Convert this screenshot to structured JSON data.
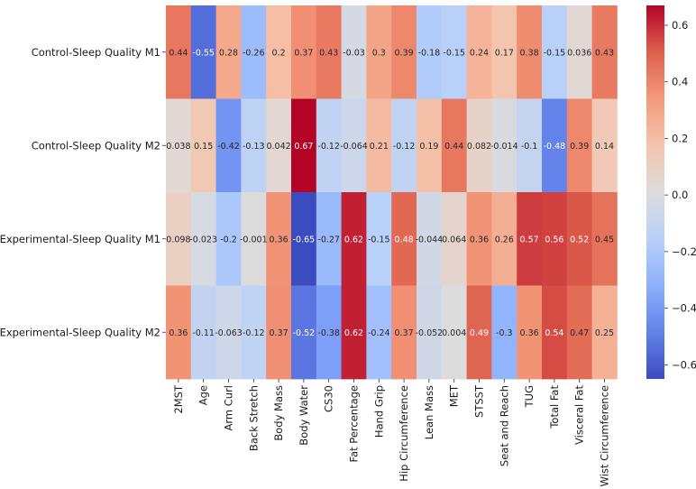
{
  "chart_data": {
    "type": "heatmap",
    "title": "",
    "xlabel": "",
    "ylabel": "",
    "rows": [
      "Control-Sleep Quality M1",
      "Control-Sleep Quality M2",
      "Experimental-Sleep Quality M1",
      "Experimental-Sleep Quality M2"
    ],
    "columns": [
      "2MST",
      "Age",
      "Arm Curl",
      "Back Stretch",
      "Body Mass",
      "Body Water",
      "CS30",
      "Fat Percentage",
      "Hand Grip",
      "Hip Circumference",
      "Lean Mass",
      "MET",
      "STSST",
      "Seat and Reach",
      "TUG",
      "Total Fat",
      "Visceral Fat",
      "Wist Circumference"
    ],
    "values": [
      [
        0.44,
        -0.55,
        0.28,
        -0.26,
        0.2,
        0.37,
        0.43,
        -0.03,
        0.3,
        0.39,
        -0.18,
        -0.15,
        0.24,
        0.17,
        0.38,
        -0.15,
        0.036,
        0.43
      ],
      [
        0.038,
        0.15,
        -0.42,
        -0.13,
        0.042,
        0.67,
        -0.12,
        -0.064,
        0.21,
        -0.12,
        0.19,
        0.44,
        0.082,
        -0.014,
        -0.1,
        -0.48,
        0.39,
        0.14
      ],
      [
        0.098,
        -0.023,
        -0.2,
        -0.001,
        0.36,
        -0.65,
        -0.27,
        0.62,
        -0.15,
        0.48,
        -0.044,
        0.064,
        0.36,
        0.26,
        0.57,
        0.56,
        0.52,
        0.45
      ],
      [
        0.36,
        -0.11,
        -0.063,
        -0.12,
        0.37,
        -0.52,
        -0.38,
        0.62,
        -0.24,
        0.37,
        -0.052,
        0.004,
        0.49,
        -0.3,
        0.36,
        0.54,
        0.47,
        0.25
      ]
    ],
    "labels": [
      [
        "0.44",
        "-0.55",
        "0.28",
        "-0.26",
        "0.2",
        "0.37",
        "0.43",
        "-0.03",
        "0.3",
        "0.39",
        "-0.18",
        "-0.15",
        "0.24",
        "0.17",
        "0.38",
        "-0.15",
        "0.036",
        "0.43"
      ],
      [
        "0.038",
        "0.15",
        "-0.42",
        "-0.13",
        "0.042",
        "0.67",
        "-0.12",
        "-0.064",
        "0.21",
        "-0.12",
        "0.19",
        "0.44",
        "0.082",
        "-0.014",
        "-0.1",
        "-0.48",
        "0.39",
        "0.14"
      ],
      [
        "0.098",
        "-0.023",
        "-0.2",
        "-0.001",
        "0.36",
        "-0.65",
        "-0.27",
        "0.62",
        "-0.15",
        "0.48",
        "-0.044",
        "0.064",
        "0.36",
        "0.26",
        "0.57",
        "0.56",
        "0.52",
        "0.45"
      ],
      [
        "0.36",
        "-0.11",
        "-0.063",
        "-0.12",
        "0.37",
        "-0.52",
        "-0.38",
        "0.62",
        "-0.24",
        "0.37",
        "-0.052",
        "0.004",
        "0.49",
        "-0.3",
        "0.36",
        "0.54",
        "0.47",
        "0.25"
      ]
    ],
    "colormap": "coolwarm",
    "vmin": -0.65,
    "vmax": 0.67,
    "colorbar": {
      "ticks": [
        -0.6,
        -0.4,
        -0.2,
        0.0,
        0.2,
        0.4,
        0.6
      ],
      "tick_labels": [
        "−0.6",
        "−0.4",
        "−0.2",
        "0.0",
        "0.2",
        "0.4",
        "0.6"
      ]
    }
  }
}
